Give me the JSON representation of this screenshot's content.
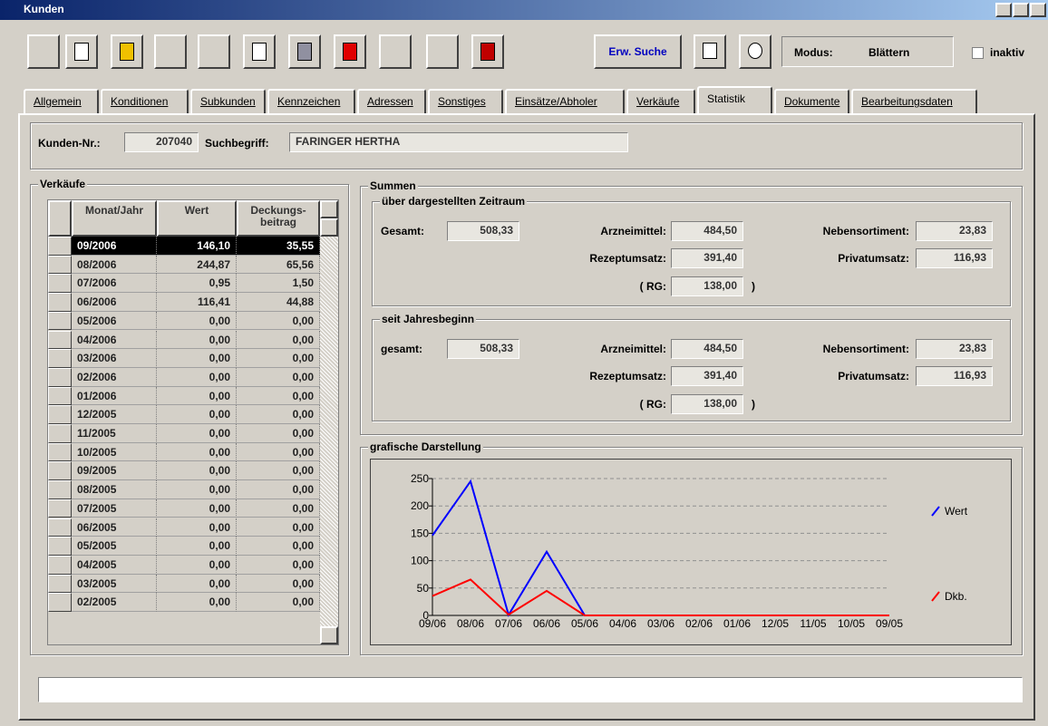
{
  "window": {
    "title": "Kunden"
  },
  "toolbar": {
    "search": "Erw. Suche",
    "modus_label": "Modus:",
    "modus_value": "Blättern",
    "inaktiv": "inaktiv"
  },
  "tabs": [
    "Allgemein",
    "Konditionen",
    "Subkunden",
    "Kennzeichen",
    "Adressen",
    "Sonstiges",
    "Einsätze/Abholer",
    "Verkäufe",
    "Statistik",
    "Dokumente",
    "Bearbeitungsdaten"
  ],
  "kunde": {
    "nr_label": "Kunden-Nr.:",
    "nr": "207040",
    "such_label": "Suchbegriff:",
    "such": "FARINGER HERTHA"
  },
  "verkaeufe": {
    "title": "Verkäufe",
    "columns": [
      "Monat/Jahr",
      "Wert",
      "Deckungs-\nbeitrag"
    ],
    "rows": [
      [
        "09/2006",
        "146,10",
        "35,55"
      ],
      [
        "08/2006",
        "244,87",
        "65,56"
      ],
      [
        "07/2006",
        "0,95",
        "1,50"
      ],
      [
        "06/2006",
        "116,41",
        "44,88"
      ],
      [
        "05/2006",
        "0,00",
        "0,00"
      ],
      [
        "04/2006",
        "0,00",
        "0,00"
      ],
      [
        "03/2006",
        "0,00",
        "0,00"
      ],
      [
        "02/2006",
        "0,00",
        "0,00"
      ],
      [
        "01/2006",
        "0,00",
        "0,00"
      ],
      [
        "12/2005",
        "0,00",
        "0,00"
      ],
      [
        "11/2005",
        "0,00",
        "0,00"
      ],
      [
        "10/2005",
        "0,00",
        "0,00"
      ],
      [
        "09/2005",
        "0,00",
        "0,00"
      ],
      [
        "08/2005",
        "0,00",
        "0,00"
      ],
      [
        "07/2005",
        "0,00",
        "0,00"
      ],
      [
        "06/2005",
        "0,00",
        "0,00"
      ],
      [
        "05/2005",
        "0,00",
        "0,00"
      ],
      [
        "04/2005",
        "0,00",
        "0,00"
      ],
      [
        "03/2005",
        "0,00",
        "0,00"
      ],
      [
        "02/2005",
        "0,00",
        "0,00"
      ]
    ]
  },
  "summen": {
    "title": "Summen",
    "groups": [
      {
        "title": "über dargestellten Zeitraum",
        "gesamt_label": "Gesamt:",
        "gesamt": "508,33",
        "arznei_label": "Arzneimittel:",
        "arznei": "484,50",
        "neben_label": "Nebensortiment:",
        "neben": "23,83",
        "rezept_label": "Rezeptumsatz:",
        "rezept": "391,40",
        "privat_label": "Privatumsatz:",
        "privat": "116,93",
        "rg_label": "( RG:",
        "rg": "138,00",
        "rg_close": ")"
      },
      {
        "title": "seit Jahresbeginn",
        "gesamt_label": "gesamt:",
        "gesamt": "508,33",
        "arznei_label": "Arzneimittel:",
        "arznei": "484,50",
        "neben_label": "Nebensortiment:",
        "neben": "23,83",
        "rezept_label": "Rezeptumsatz:",
        "rezept": "391,40",
        "privat_label": "Privatumsatz:",
        "privat": "116,93",
        "rg_label": "( RG:",
        "rg": "138,00",
        "rg_close": ")"
      }
    ]
  },
  "chart_data": {
    "type": "line",
    "title": "grafische Darstellung",
    "categories": [
      "09/06",
      "08/06",
      "07/06",
      "06/06",
      "05/06",
      "04/06",
      "03/06",
      "02/06",
      "01/06",
      "12/05",
      "11/05",
      "10/05",
      "09/05"
    ],
    "series": [
      {
        "name": "Wert",
        "color": "#0000ff",
        "values": [
          146.1,
          244.87,
          0.95,
          116.41,
          0,
          0,
          0,
          0,
          0,
          0,
          0,
          0,
          0
        ]
      },
      {
        "name": "Dkb.",
        "color": "#ff0000",
        "values": [
          35.55,
          65.56,
          1.5,
          44.88,
          0,
          0,
          0,
          0,
          0,
          0,
          0,
          0,
          0
        ]
      }
    ],
    "ylim": [
      0,
      250
    ],
    "yticks": [
      0,
      50,
      100,
      150,
      200,
      250
    ],
    "grid": true
  }
}
